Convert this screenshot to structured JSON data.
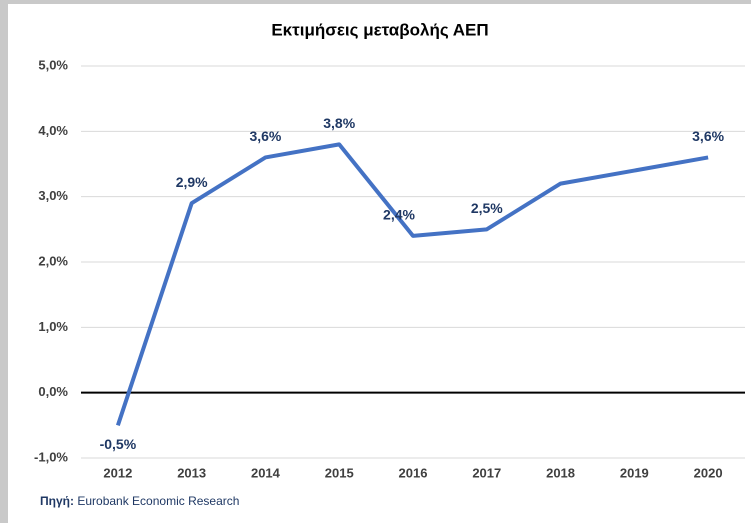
{
  "chart_data": {
    "type": "line",
    "title": "Εκτιμήσεις μεταβολής ΑΕΠ",
    "categories": [
      "2012",
      "2013",
      "2014",
      "2015",
      "2016",
      "2017",
      "2018",
      "2019",
      "2020"
    ],
    "series": [
      {
        "name": "ΑΕΠ",
        "color": "#4472c4",
        "values": [
          -0.5,
          2.9,
          3.6,
          3.8,
          2.4,
          2.5,
          3.2,
          3.4,
          3.6
        ],
        "value_labels": [
          "-0,5%",
          "2,9%",
          "3,6%",
          "3,8%",
          "2,4%",
          "2,5%",
          null,
          null,
          "3,6%"
        ]
      }
    ],
    "ylim": [
      -1,
      5
    ],
    "yticks": [
      {
        "value": -1,
        "label": "-1,0%"
      },
      {
        "value": 0,
        "label": "0,0%"
      },
      {
        "value": 1,
        "label": "1,0%"
      },
      {
        "value": 2,
        "label": "2,0%"
      },
      {
        "value": 3,
        "label": "3,0%"
      },
      {
        "value": 4,
        "label": "4,0%"
      },
      {
        "value": 5,
        "label": "5,0%"
      }
    ],
    "grid": true,
    "source_label": "Πηγή:",
    "source": "Eurobank Economic Research"
  }
}
